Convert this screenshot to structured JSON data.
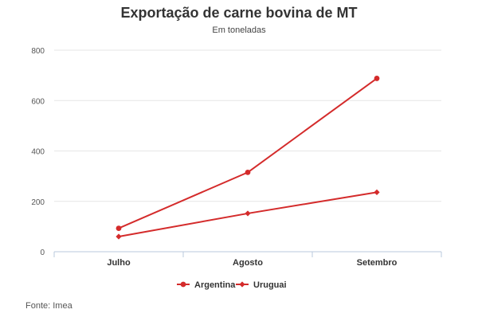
{
  "header": {
    "title": "Exportação de carne bovina de MT",
    "subtitle": "Em toneladas"
  },
  "footer": {
    "source": "Fonte: Imea"
  },
  "chart_data": {
    "type": "line",
    "title": "Exportação de carne bovina de MT",
    "subtitle": "Em toneladas",
    "xlabel": "",
    "ylabel": "",
    "categories": [
      "Julho",
      "Agosto",
      "Setembro"
    ],
    "ylim": [
      0,
      800
    ],
    "yticks": [
      0,
      200,
      400,
      600,
      800
    ],
    "grid": true,
    "legend_position": "bottom-center",
    "series": [
      {
        "name": "Argentina",
        "values": [
          93,
          315,
          688
        ],
        "color": "#d42b2b",
        "marker": "circle"
      },
      {
        "name": "Uruguai",
        "values": [
          60,
          152,
          236
        ],
        "color": "#d42b2b",
        "marker": "diamond"
      }
    ]
  }
}
